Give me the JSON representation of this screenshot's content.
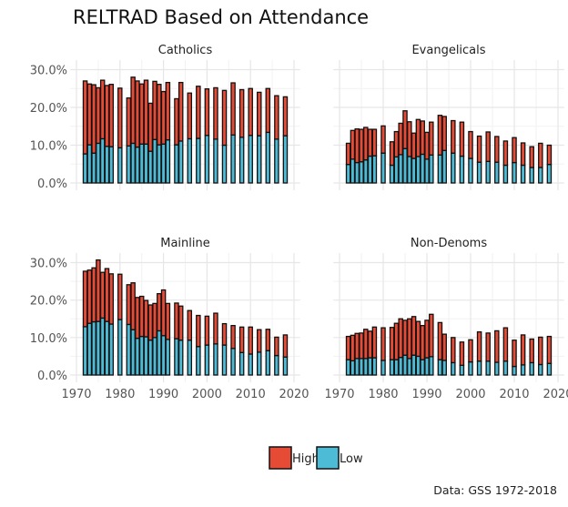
{
  "chart_data": {
    "type": "bar",
    "stacked": true,
    "title": "RELTRAD Based on Attendance",
    "caption": "Data: GSS 1972-2018",
    "xlabel": "",
    "ylabel": "",
    "xlim": [
      1970,
      2020
    ],
    "ylim": [
      0,
      30
    ],
    "x_ticks": [
      "1970",
      "1980",
      "1990",
      "2000",
      "2010",
      "2020"
    ],
    "y_ticks": [
      "0.0%",
      "10.0%",
      "20.0%",
      "30.0%"
    ],
    "y_tick_values": [
      0,
      10,
      20,
      30
    ],
    "x_tick_values": [
      1970,
      1980,
      1990,
      2000,
      2010,
      2020
    ],
    "grid": true,
    "legend": {
      "placement": "bottom",
      "entries": [
        "High",
        "Low"
      ]
    },
    "colors": {
      "High": "#E64B35",
      "Low": "#4DBBD5"
    },
    "years": [
      1972,
      1973,
      1974,
      1975,
      1976,
      1977,
      1978,
      1980,
      1982,
      1983,
      1984,
      1985,
      1986,
      1987,
      1988,
      1989,
      1990,
      1991,
      1993,
      1994,
      1996,
      1998,
      2000,
      2002,
      2004,
      2006,
      2008,
      2010,
      2012,
      2014,
      2016,
      2018
    ],
    "facets": [
      {
        "name": "Catholics",
        "series": [
          {
            "name": "Low",
            "values": [
              7.7,
              10.1,
              7.9,
              10.5,
              11.7,
              9.7,
              9.6,
              9.3,
              9.8,
              10.5,
              9.5,
              10.3,
              10.3,
              8.4,
              11.5,
              10.1,
              10.3,
              11.4,
              10.1,
              11.1,
              11.7,
              11.8,
              12.6,
              11.6,
              10.0,
              12.7,
              12.1,
              12.6,
              12.5,
              13.4,
              11.6,
              12.5
            ]
          },
          {
            "name": "High",
            "values": [
              19.3,
              16.1,
              18.1,
              14.7,
              15.5,
              16.1,
              16.5,
              15.8,
              12.7,
              17.5,
              17.5,
              15.9,
              16.9,
              12.7,
              15.4,
              16.0,
              13.9,
              15.2,
              12.2,
              15.5,
              12.1,
              13.8,
              12.3,
              13.6,
              14.5,
              13.8,
              12.6,
              12.4,
              11.5,
              11.6,
              11.5,
              10.3
            ]
          }
        ]
      },
      {
        "name": "Evangelicals",
        "series": [
          {
            "name": "Low",
            "values": [
              4.9,
              6.3,
              5.4,
              5.6,
              6.1,
              7.1,
              7.2,
              7.9,
              4.7,
              6.9,
              7.5,
              9.1,
              7.0,
              6.5,
              7.0,
              7.6,
              6.3,
              7.4,
              7.4,
              8.6,
              7.9,
              7.1,
              6.5,
              5.5,
              5.7,
              5.5,
              4.7,
              5.4,
              4.7,
              4.1,
              4.1,
              4.9
            ]
          },
          {
            "name": "High",
            "values": [
              5.6,
              7.6,
              8.9,
              8.6,
              8.6,
              7.1,
              7.0,
              7.2,
              6.2,
              6.7,
              8.3,
              10.0,
              9.2,
              6.7,
              9.8,
              8.8,
              7.1,
              8.7,
              10.5,
              9.0,
              8.6,
              9.0,
              7.1,
              6.9,
              7.8,
              6.8,
              6.4,
              6.6,
              5.9,
              5.5,
              6.4,
              5.1
            ]
          }
        ]
      },
      {
        "name": "Mainline",
        "series": [
          {
            "name": "Low",
            "values": [
              12.9,
              13.8,
              14.2,
              14.3,
              15.2,
              14.3,
              13.6,
              14.8,
              13.5,
              12.1,
              9.8,
              10.3,
              10.2,
              9.3,
              10.0,
              11.8,
              10.5,
              9.5,
              9.7,
              9.3,
              9.3,
              7.6,
              8.0,
              8.3,
              8.0,
              7.1,
              6.0,
              5.6,
              6.1,
              6.5,
              5.2,
              4.8
            ]
          },
          {
            "name": "High",
            "values": [
              14.8,
              14.2,
              14.4,
              16.4,
              12.2,
              14.1,
              13.4,
              12.1,
              10.6,
              12.5,
              10.9,
              10.7,
              9.7,
              9.4,
              9.1,
              9.9,
              12.2,
              9.6,
              9.5,
              9.1,
              7.9,
              8.3,
              7.7,
              8.2,
              5.7,
              6.1,
              6.8,
              7.2,
              6.0,
              5.7,
              4.9,
              5.9
            ]
          }
        ]
      },
      {
        "name": "Non-Denoms",
        "series": [
          {
            "name": "Low",
            "values": [
              4.1,
              3.8,
              4.4,
              4.4,
              4.4,
              4.6,
              4.6,
              3.9,
              4.1,
              4.1,
              4.7,
              5.3,
              4.4,
              5.3,
              5.0,
              4.1,
              4.6,
              4.9,
              4.1,
              3.9,
              3.3,
              2.6,
              3.5,
              3.7,
              3.7,
              3.4,
              3.7,
              2.3,
              2.7,
              3.3,
              2.8,
              3.1
            ]
          },
          {
            "name": "High",
            "values": [
              6.2,
              6.8,
              6.7,
              6.8,
              7.8,
              7.1,
              8.2,
              8.7,
              8.6,
              9.7,
              10.3,
              9.3,
              10.6,
              10.3,
              9.3,
              9.1,
              10.0,
              11.3,
              9.9,
              7.0,
              6.7,
              6.2,
              5.9,
              7.8,
              7.5,
              8.4,
              8.9,
              7.0,
              8.0,
              6.3,
              7.3,
              7.2
            ]
          }
        ]
      }
    ]
  }
}
